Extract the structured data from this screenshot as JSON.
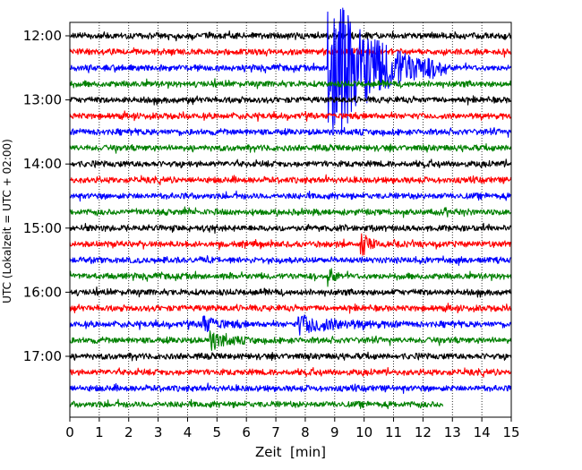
{
  "chart_data": {
    "type": "line",
    "title": "",
    "xlabel": "Zeit  [min]",
    "ylabel": "UTC (Lokalzeit = UTC + 02:00)",
    "xlim": [
      0,
      15
    ],
    "x_ticks": [
      "0",
      "1",
      "2",
      "3",
      "4",
      "5",
      "6",
      "7",
      "8",
      "9",
      "10",
      "11",
      "12",
      "13",
      "14",
      "15"
    ],
    "y_ticks": [
      "12:00",
      "13:00",
      "14:00",
      "15:00",
      "16:00",
      "17:00"
    ],
    "grid": "vertical-dotted",
    "colors": {
      "cycle": [
        "#000000",
        "#ff0000",
        "#0000ff",
        "#008000"
      ]
    },
    "series": [
      {
        "start": "12:00",
        "color": "#000000",
        "end_min": 15,
        "events": []
      },
      {
        "start": "12:15",
        "color": "#ff0000",
        "end_min": 15,
        "events": []
      },
      {
        "start": "12:30",
        "color": "#0000ff",
        "end_min": 15,
        "events": [
          {
            "at_min": 8.8,
            "amp": "very large",
            "decay_min": 4.0
          }
        ]
      },
      {
        "start": "12:45",
        "color": "#008000",
        "end_min": 15,
        "events": []
      },
      {
        "start": "13:00",
        "color": "#000000",
        "end_min": 15,
        "events": []
      },
      {
        "start": "13:15",
        "color": "#ff0000",
        "end_min": 15,
        "events": []
      },
      {
        "start": "13:30",
        "color": "#0000ff",
        "end_min": 15,
        "events": []
      },
      {
        "start": "13:45",
        "color": "#008000",
        "end_min": 15,
        "events": []
      },
      {
        "start": "14:00",
        "color": "#000000",
        "end_min": 15,
        "events": []
      },
      {
        "start": "14:15",
        "color": "#ff0000",
        "end_min": 15,
        "events": []
      },
      {
        "start": "14:30",
        "color": "#0000ff",
        "end_min": 15,
        "events": []
      },
      {
        "start": "14:45",
        "color": "#008000",
        "end_min": 15,
        "events": []
      },
      {
        "start": "15:00",
        "color": "#000000",
        "end_min": 15,
        "events": []
      },
      {
        "start": "15:15",
        "color": "#ff0000",
        "end_min": 15,
        "events": [
          {
            "at_min": 9.9,
            "amp": "medium",
            "decay_min": 0.7
          }
        ]
      },
      {
        "start": "15:30",
        "color": "#0000ff",
        "end_min": 15,
        "events": []
      },
      {
        "start": "15:45",
        "color": "#008000",
        "end_min": 15,
        "events": [
          {
            "at_min": 8.8,
            "amp": "small",
            "decay_min": 0.5
          }
        ]
      },
      {
        "start": "16:00",
        "color": "#000000",
        "end_min": 15,
        "events": []
      },
      {
        "start": "16:15",
        "color": "#ff0000",
        "end_min": 15,
        "events": []
      },
      {
        "start": "16:30",
        "color": "#0000ff",
        "end_min": 15,
        "events": [
          {
            "at_min": 4.5,
            "amp": "small",
            "decay_min": 1.5
          },
          {
            "at_min": 7.8,
            "amp": "small",
            "decay_min": 3.5
          }
        ]
      },
      {
        "start": "16:45",
        "color": "#008000",
        "end_min": 15,
        "events": [
          {
            "at_min": 4.8,
            "amp": "small",
            "decay_min": 1.5
          }
        ]
      },
      {
        "start": "17:00",
        "color": "#000000",
        "end_min": 15,
        "events": []
      },
      {
        "start": "17:15",
        "color": "#ff0000",
        "end_min": 15,
        "events": []
      },
      {
        "start": "17:30",
        "color": "#0000ff",
        "end_min": 15,
        "events": []
      },
      {
        "start": "17:45",
        "color": "#008000",
        "end_min": 12.7,
        "events": []
      }
    ]
  }
}
